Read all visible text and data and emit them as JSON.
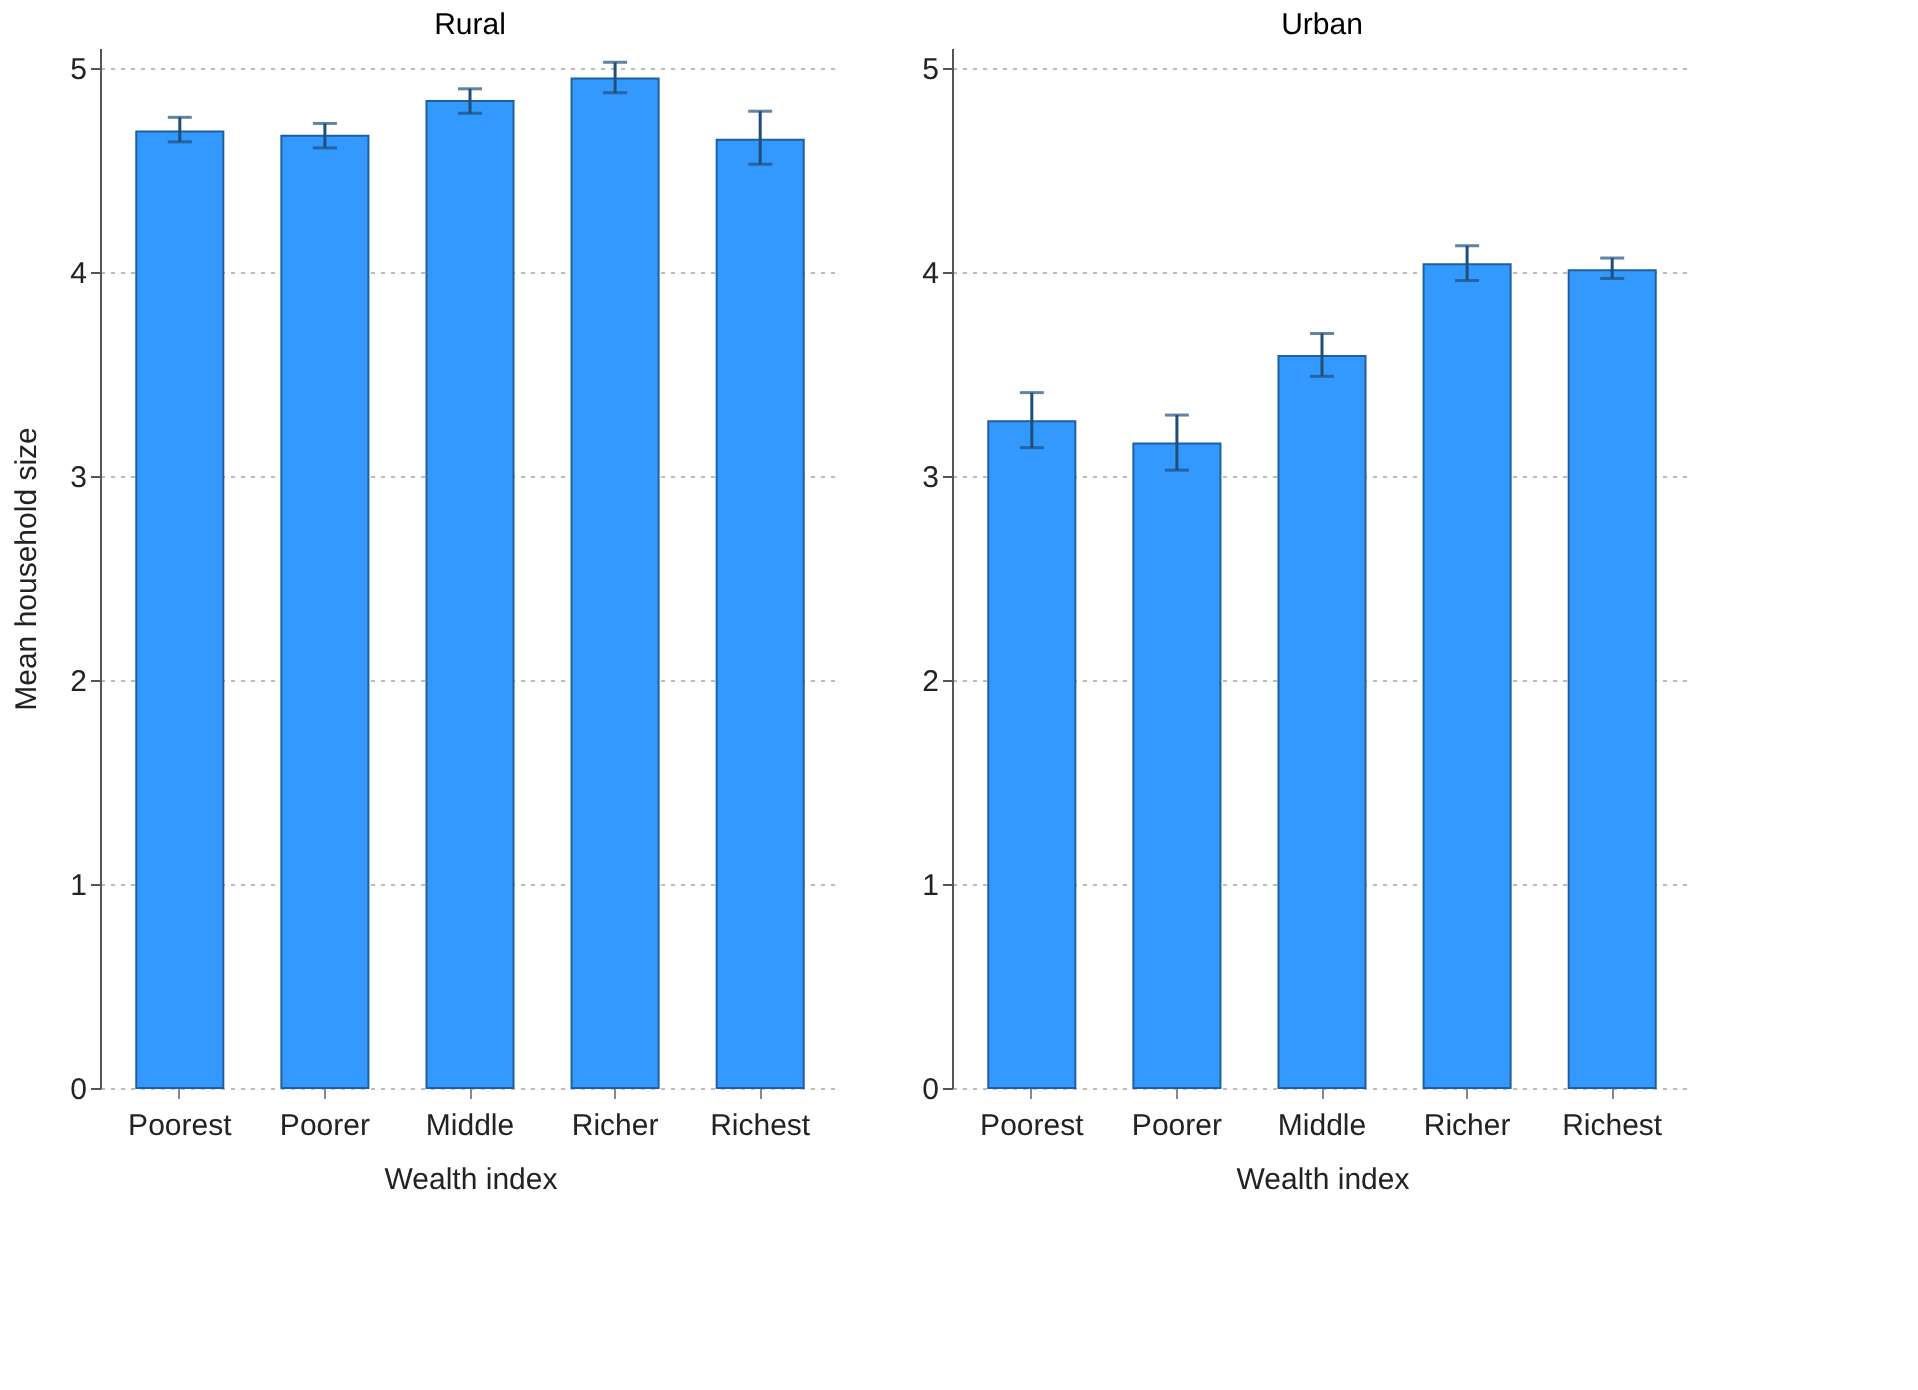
{
  "chart_data": [
    {
      "type": "bar",
      "title": "Rural",
      "xlabel": "Wealth index",
      "ylabel": "Mean household size",
      "categories": [
        "Poorest",
        "Poorer",
        "Middle",
        "Richer",
        "Richest"
      ],
      "values": [
        4.69,
        4.67,
        4.84,
        4.95,
        4.65
      ],
      "errors": [
        [
          4.64,
          4.76
        ],
        [
          4.61,
          4.73
        ],
        [
          4.78,
          4.9
        ],
        [
          4.88,
          5.03
        ],
        [
          4.53,
          4.79
        ]
      ],
      "color": "#3399ff",
      "ylim": [
        0,
        5.1
      ],
      "yticks": [
        0,
        1,
        2,
        3,
        4,
        5
      ],
      "grid": "y"
    },
    {
      "type": "bar",
      "title": "Urban",
      "xlabel": "Wealth index",
      "categories": [
        "Poorest",
        "Poorer",
        "Middle",
        "Richer",
        "Richest"
      ],
      "values": [
        3.27,
        3.16,
        3.59,
        4.04,
        4.01
      ],
      "errors": [
        [
          3.14,
          3.41
        ],
        [
          3.03,
          3.3
        ],
        [
          3.49,
          3.7
        ],
        [
          3.96,
          4.13
        ],
        [
          3.97,
          4.07
        ]
      ],
      "color": "#3399ff",
      "ylim": [
        0,
        5.1
      ],
      "yticks": [
        0,
        1,
        2,
        3,
        4,
        5
      ],
      "grid": "y"
    }
  ]
}
